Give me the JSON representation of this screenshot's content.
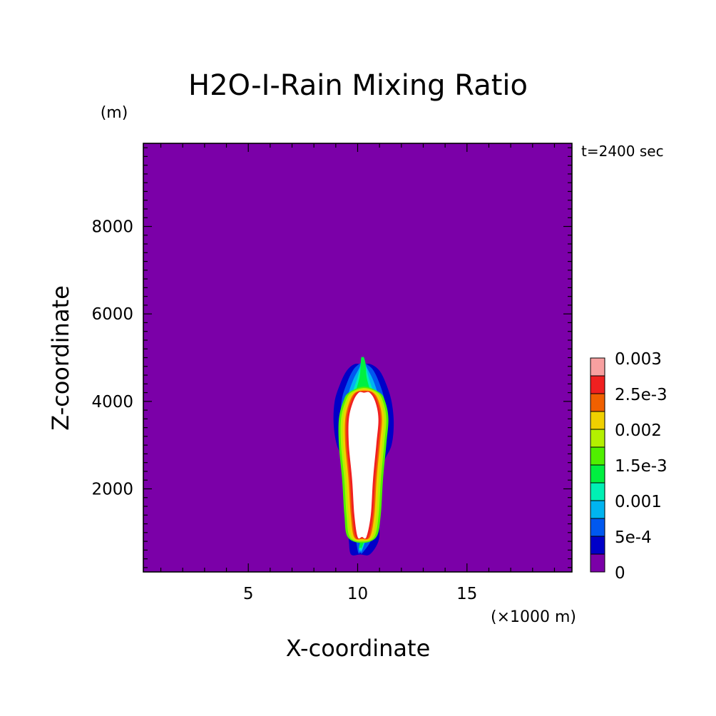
{
  "chart_data": {
    "type": "heatmap",
    "title": "H2O-I-Rain Mixing Ratio",
    "xlabel": "X-coordinate",
    "ylabel": "Z-coordinate",
    "x_unit": "(×1000 m)",
    "y_unit": "(m)",
    "time_label": "t=2400 sec",
    "xlim": [
      0.2,
      19.8
    ],
    "ylim": [
      100,
      9900
    ],
    "x_ticks": [
      5,
      10,
      15
    ],
    "y_ticks": [
      2000,
      4000,
      6000,
      8000
    ],
    "x_minor_step": 1,
    "y_minor_step": 200,
    "grid": false,
    "legend_position": "right",
    "colorbar": {
      "levels": [
        0,
        0.00025,
        0.0005,
        0.00075,
        0.001,
        0.00125,
        0.0015,
        0.00175,
        0.002,
        0.00225,
        0.0025,
        0.00275,
        0.003
      ],
      "labels": [
        "0",
        "5e-4",
        "0.001",
        "1.5e-3",
        "0.002",
        "2.5e-3",
        "0.003"
      ],
      "colors": [
        "#7b00a8",
        "#0000c8",
        "#0058f0",
        "#00b4f0",
        "#00f0b4",
        "#00f040",
        "#50f000",
        "#b4f000",
        "#f0d000",
        "#f06000",
        "#f02020",
        "#f8a0a0"
      ]
    },
    "over_color": "#ffffff",
    "contour_region": [
      {
        "z": 500,
        "x_left": 9.7,
        "x_right": 10.55
      },
      {
        "z": 800,
        "x_left": 9.6,
        "x_right": 10.95
      },
      {
        "z": 1200,
        "x_left": 9.55,
        "x_right": 11.0
      },
      {
        "z": 2000,
        "x_left": 9.55,
        "x_right": 11.0
      },
      {
        "z": 2600,
        "x_left": 9.4,
        "x_right": 11.2
      },
      {
        "z": 3000,
        "x_left": 9.05,
        "x_right": 11.55
      },
      {
        "z": 3500,
        "x_left": 8.9,
        "x_right": 11.65
      },
      {
        "z": 4000,
        "x_left": 8.95,
        "x_right": 11.55
      },
      {
        "z": 4400,
        "x_left": 9.2,
        "x_right": 11.3
      },
      {
        "z": 4700,
        "x_left": 9.5,
        "x_right": 11.0
      },
      {
        "z": 4850,
        "x_left": 9.85,
        "x_right": 10.6
      }
    ],
    "core_region": [
      {
        "z": 900,
        "x_left": 10.0,
        "x_right": 10.4
      },
      {
        "z": 1400,
        "x_left": 9.85,
        "x_right": 10.6
      },
      {
        "z": 2200,
        "x_left": 9.75,
        "x_right": 10.7
      },
      {
        "z": 3000,
        "x_left": 9.6,
        "x_right": 10.85
      },
      {
        "z": 3600,
        "x_left": 9.6,
        "x_right": 10.95
      },
      {
        "z": 4000,
        "x_left": 9.8,
        "x_right": 10.8
      },
      {
        "z": 4200,
        "x_left": 10.05,
        "x_right": 10.55
      }
    ]
  }
}
